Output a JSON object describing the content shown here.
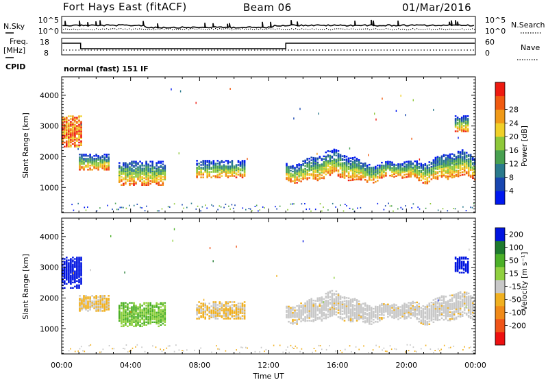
{
  "header": {
    "station": "Fort Hays East (fitACF)",
    "beam": "Beam 06",
    "date": "01/Mar/2016"
  },
  "noise_panel": {
    "left_label": "N.Sky",
    "right_label": "N.Search",
    "left_ticks": [
      "10^5",
      "10^0"
    ],
    "right_ticks": [
      "10^5",
      "10^0"
    ]
  },
  "freq_panel": {
    "left_label_top": "Freq.",
    "left_label_unit": "[MHz]",
    "right_label": "Nave",
    "left_ticks": [
      "18",
      "8"
    ],
    "right_ticks": [
      "60",
      "0"
    ],
    "cpid_label": "CPID",
    "cpid_text": "normal (fast) 151 IF"
  },
  "colors": {
    "power": [
      "#0018f0",
      "#1846b0",
      "#2a7a8c",
      "#48a050",
      "#8ec83a",
      "#f0d028",
      "#f09a18",
      "#f05a10",
      "#ee1a10"
    ],
    "velocity": [
      "#0014e0",
      "#1e7a2e",
      "#4cb028",
      "#90d040",
      "#c8c8c8",
      "#f0b020",
      "#f08a18",
      "#f05418",
      "#ee1010"
    ]
  },
  "chart_data": [
    {
      "type": "heatmap",
      "name": "power",
      "xlabel": "",
      "ylabel": "Slant Range [km]",
      "xlim": [
        0,
        24
      ],
      "ylim": [
        180,
        4600
      ],
      "x_ticks": [
        "00:00",
        "04:00",
        "08:00",
        "12:00",
        "16:00",
        "20:00",
        "00:00"
      ],
      "y_ticks": [
        1000,
        2000,
        3000,
        4000
      ],
      "colorbar_label": "Power [dB]",
      "colorbar_ticks": [
        4,
        8,
        12,
        16,
        20,
        24,
        28
      ],
      "regions": [
        {
          "t0": 0.0,
          "t1": 1.1,
          "r_low": 2300,
          "r_high": 3300
        },
        {
          "t0": 1.0,
          "t1": 2.8,
          "r_low": 1550,
          "r_high": 2050
        },
        {
          "t0": 3.3,
          "t1": 6.0,
          "r_low": 1050,
          "r_high": 1850
        },
        {
          "t0": 7.8,
          "t1": 10.6,
          "r_low": 1300,
          "r_high": 1850
        },
        {
          "t0": 13.0,
          "t1": 24.0,
          "r_low": 1250,
          "r_high": 2300
        },
        {
          "t0": 22.8,
          "t1": 23.6,
          "r_low": 2800,
          "r_high": 3300
        }
      ]
    },
    {
      "type": "heatmap",
      "name": "velocity",
      "xlabel": "Time UT",
      "ylabel": "Slant Range [km]",
      "xlim": [
        0,
        24
      ],
      "ylim": [
        180,
        4600
      ],
      "x_ticks": [
        "00:00",
        "04:00",
        "08:00",
        "12:00",
        "16:00",
        "20:00",
        "00:00"
      ],
      "y_ticks": [
        1000,
        2000,
        3000,
        4000
      ],
      "colorbar_label": "Velocity [m s⁻¹]",
      "colorbar_ticks": [
        "200",
        "100",
        "50",
        "15",
        "-15",
        "-50",
        "-100",
        "-200"
      ],
      "regions": [
        {
          "t0": 0.0,
          "t1": 1.1,
          "r_low": 2300,
          "r_high": 3300
        },
        {
          "t0": 1.0,
          "t1": 2.8,
          "r_low": 1550,
          "r_high": 2050
        },
        {
          "t0": 3.3,
          "t1": 6.0,
          "r_low": 1050,
          "r_high": 1850
        },
        {
          "t0": 7.8,
          "t1": 10.6,
          "r_low": 1300,
          "r_high": 1850
        },
        {
          "t0": 13.0,
          "t1": 24.0,
          "r_low": 1250,
          "r_high": 2300
        },
        {
          "t0": 22.8,
          "t1": 23.6,
          "r_low": 2800,
          "r_high": 3300
        }
      ]
    }
  ]
}
